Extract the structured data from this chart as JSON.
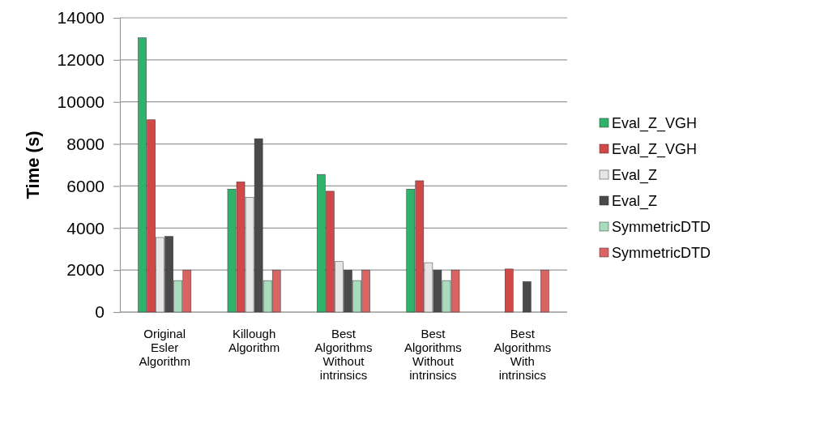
{
  "chart_data": {
    "type": "bar",
    "ylabel": "Time (s)",
    "categories": [
      "Original Esler Algorithm",
      "Killough Algorithm",
      "Best Algorithms Without intrinsics",
      "Best Algorithms Without intrinsics",
      "Best Algorithms With intrinsics"
    ],
    "series": [
      {
        "name": "Eval_Z_VGH",
        "color": "#2fb36a",
        "values": [
          13050,
          5850,
          6550,
          5850,
          null
        ]
      },
      {
        "name": "Eval_Z_VGH",
        "color": "#d04848",
        "values": [
          9150,
          6200,
          5750,
          6250,
          2050
        ]
      },
      {
        "name": "Eval_Z",
        "color": "#e6e6e6",
        "values": [
          3550,
          5450,
          2400,
          2350,
          null
        ]
      },
      {
        "name": "Eval_Z",
        "color": "#4a4a4a",
        "values": [
          3600,
          8250,
          2000,
          2000,
          1450
        ]
      },
      {
        "name": "SymmetricDTD",
        "color": "#a9dcbc",
        "values": [
          1500,
          1500,
          1500,
          1500,
          null
        ]
      },
      {
        "name": "SymmetricDTD",
        "color": "#d96464",
        "values": [
          2000,
          2000,
          2000,
          2000,
          2000
        ]
      }
    ],
    "ylim": [
      0,
      14000
    ],
    "yticks": [
      0,
      2000,
      4000,
      6000,
      8000,
      10000,
      12000,
      14000
    ],
    "grid": "y",
    "legend": "right"
  }
}
